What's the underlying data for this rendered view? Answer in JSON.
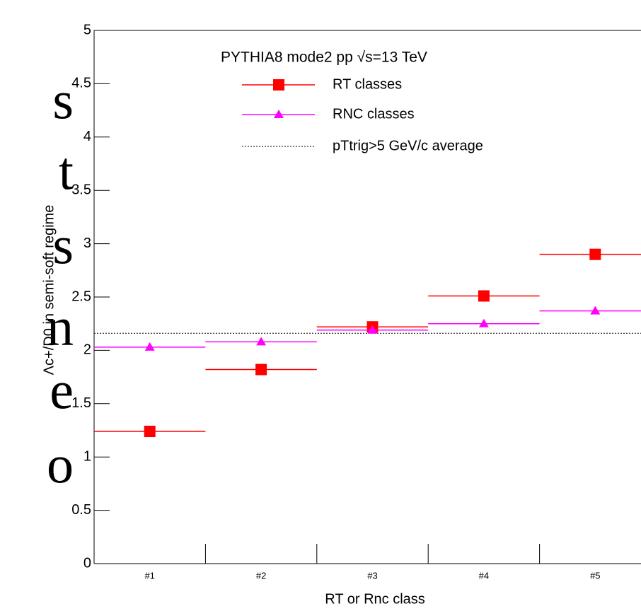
{
  "margin_text": [
    "s",
    "t",
    "s",
    "n",
    "e",
    "o"
  ],
  "chart_data": {
    "type": "scatter",
    "legend_title": "PYTHIA8 mode2 pp √s=13 TeV",
    "x_label": "RT or Rnc class",
    "y_label": "Λc+/D0 in semi-soft regime",
    "categories": [
      "#1",
      "#2",
      "#3",
      "#4",
      "#5"
    ],
    "series": [
      {
        "name": "RT classes",
        "color": "#ff0000",
        "marker": "square",
        "values": [
          1.24,
          1.82,
          2.22,
          2.51,
          2.9
        ]
      },
      {
        "name": "RNC classes",
        "color": "#ff00ff",
        "marker": "triangle",
        "values": [
          2.03,
          2.08,
          2.19,
          2.25,
          2.37
        ]
      }
    ],
    "reference": {
      "name": "pTtrig>5 GeV/c average",
      "value": 2.16
    },
    "ylim": [
      0,
      5
    ],
    "yticks": [
      0,
      0.5,
      1,
      1.5,
      2,
      2.5,
      3,
      3.5,
      4,
      4.5,
      5
    ],
    "legend": "top-right"
  }
}
